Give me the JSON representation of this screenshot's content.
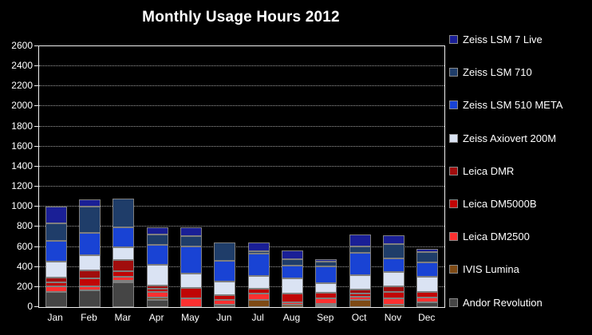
{
  "chart_data": {
    "type": "bar",
    "stacked": true,
    "title": "Monthly Usage Hours 2012",
    "categories": [
      "Jan",
      "Feb",
      "Mar",
      "Apr",
      "May",
      "Jun",
      "Jul",
      "Aug",
      "Sep",
      "Oct",
      "Nov",
      "Dec"
    ],
    "series": [
      {
        "name": "Zeiss LSM 7 Live",
        "color": "#1A1F96",
        "values": [
          165,
          75,
          0,
          70,
          85,
          0,
          90,
          85,
          25,
          120,
          90,
          35
        ]
      },
      {
        "name": "Zeiss LSM 710",
        "color": "#1F3D69",
        "values": [
          175,
          260,
          285,
          105,
          105,
          180,
          25,
          65,
          50,
          65,
          140,
          100
        ]
      },
      {
        "name": "Zeiss LSM 510 META",
        "color": "#1943D4",
        "values": [
          210,
          225,
          200,
          200,
          270,
          210,
          225,
          130,
          170,
          220,
          135,
          140
        ]
      },
      {
        "name": "Zeiss Axiovert 200M",
        "color": "#DAE3F3",
        "values": [
          160,
          150,
          130,
          205,
          145,
          135,
          130,
          155,
          95,
          145,
          140,
          150
        ]
      },
      {
        "name": "Leica DMR",
        "color": "#A00D0D",
        "values": [
          50,
          80,
          110,
          30,
          0,
          0,
          0,
          0,
          0,
          40,
          55,
          0
        ]
      },
      {
        "name": "Leica DM5000B",
        "color": "#C00505",
        "values": [
          40,
          80,
          55,
          30,
          105,
          50,
          50,
          90,
          55,
          35,
          65,
          55
        ]
      },
      {
        "name": "Leica DM2500",
        "color": "#FB3030",
        "values": [
          55,
          40,
          40,
          55,
          85,
          45,
          65,
          25,
          55,
          35,
          60,
          50
        ]
      },
      {
        "name": "IVIS Lumina",
        "color": "#7E4A15",
        "values": [
          0,
          0,
          15,
          20,
          0,
          0,
          75,
          25,
          10,
          75,
          20,
          0
        ]
      },
      {
        "name": "Andor Revolution",
        "color": "#454545",
        "values": [
          150,
          165,
          250,
          75,
          0,
          25,
          0,
          0,
          10,
          0,
          0,
          45
        ]
      }
    ],
    "ylim": [
      0,
      2600
    ],
    "y_ticks": [
      0,
      200,
      400,
      600,
      800,
      1000,
      1200,
      1400,
      1600,
      1800,
      2000,
      2200,
      2400,
      2600
    ],
    "grid": "horizontal-dotted",
    "legend_position": "right",
    "stack_order": "bottom-to-top is reverse of series list (Andor Revolution at bottom, Zeiss LSM 7 Live on top)"
  },
  "colors": {
    "background": "#000000",
    "text": "#FFFFFF",
    "plot_frame": "#F0F0F0",
    "gridline": "#C9C9C9",
    "segment_border": "#7F7F7F"
  }
}
